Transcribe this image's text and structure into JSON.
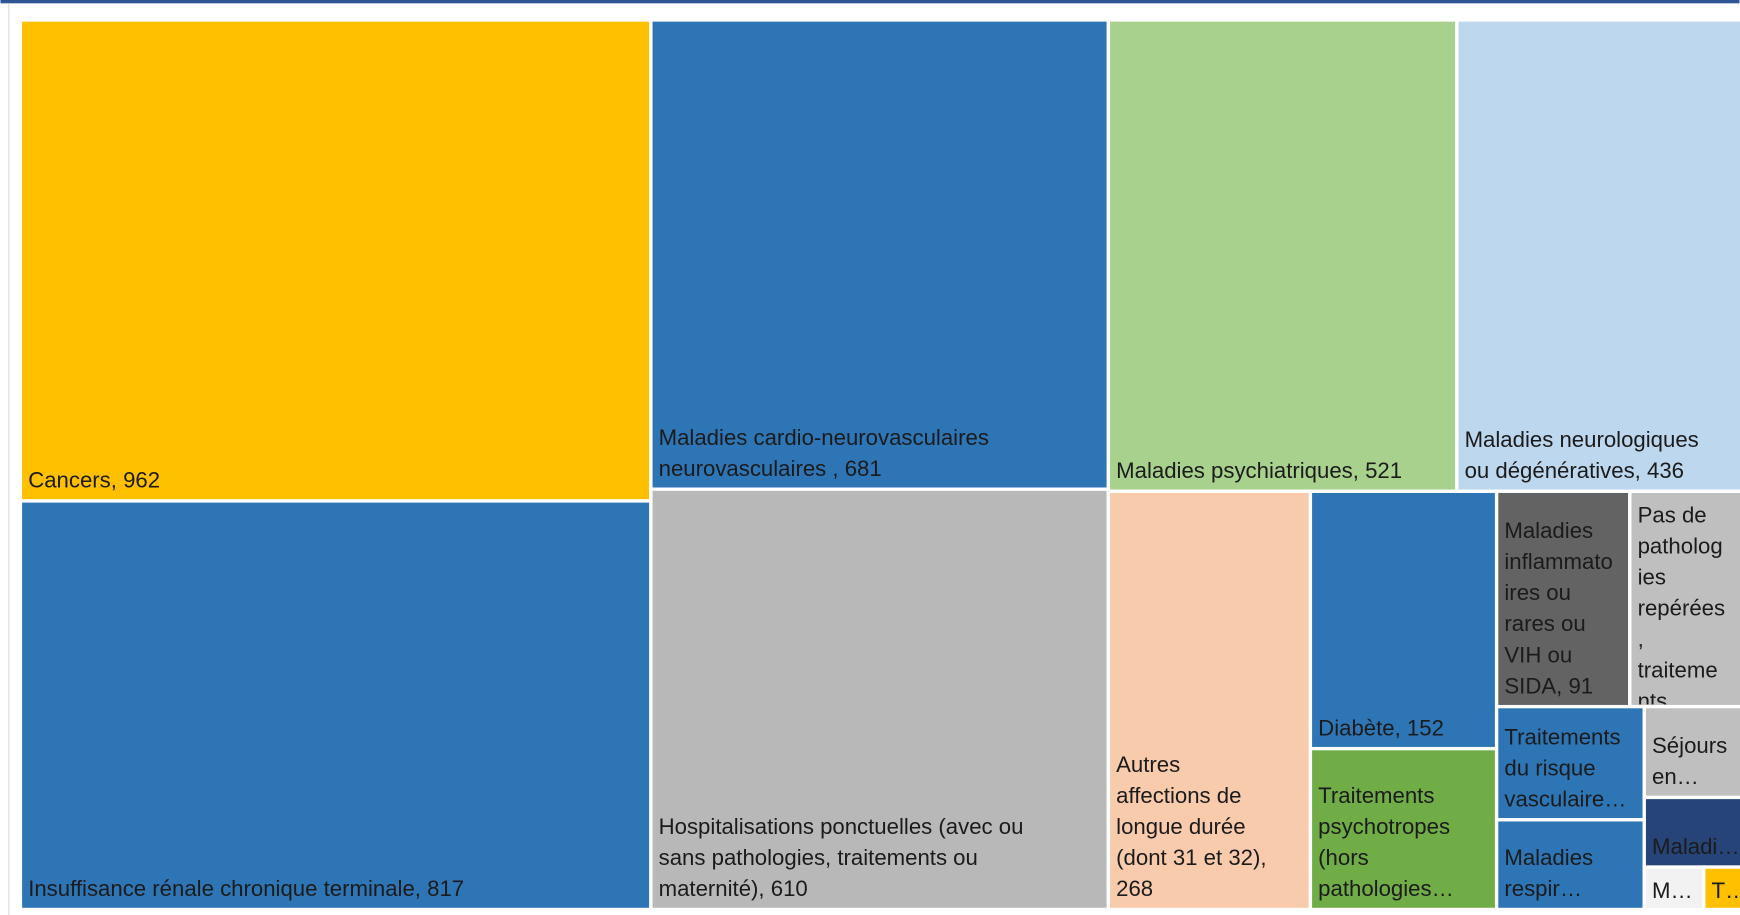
{
  "chart_data": {
    "type": "treemap",
    "labels": [
      "Cancers,  962",
      "Insuffisance rénale chronique terminale,  817",
      "Maladies cardio-neurovasculaires neurovasculaires ,  681",
      "Hospitalisations ponctuelles (avec ou sans pathologies, traitements ou maternité), 610",
      "Maladies psychiatriques,  521",
      "Maladies neurologiques ou dégénératives,  436",
      "Autres affections de longue durée (dont 31 et 32), 268",
      "Diabète,  152",
      "Traitements psychotropes (hors pathologies…",
      "Maladies inflammatoires ou rares ou VIH ou SIDA,  91",
      "Pas de pathologies repérées, traitements,…",
      "Traitements du risque vasculaire…",
      "Maladies respir…",
      "Séjours en…",
      "Maladi…",
      "M…",
      "T…"
    ],
    "values": [
      962,
      817,
      681,
      610,
      521,
      436,
      268,
      152,
      95,
      91,
      81,
      53,
      42,
      30,
      23,
      8,
      6
    ],
    "colors": [
      "#FFC000",
      "#2E75B6",
      "#2E75B6",
      "#B8B8B8",
      "#A9D18E",
      "#BDD7EE",
      "#F8CBAD",
      "#2E75B6",
      "#70AD47",
      "#636363",
      "#BFBFBF",
      "#2E75B6",
      "#2E75B6",
      "#BFBFBF",
      "#264478",
      "#F2F2F2",
      "#FFC000"
    ]
  }
}
